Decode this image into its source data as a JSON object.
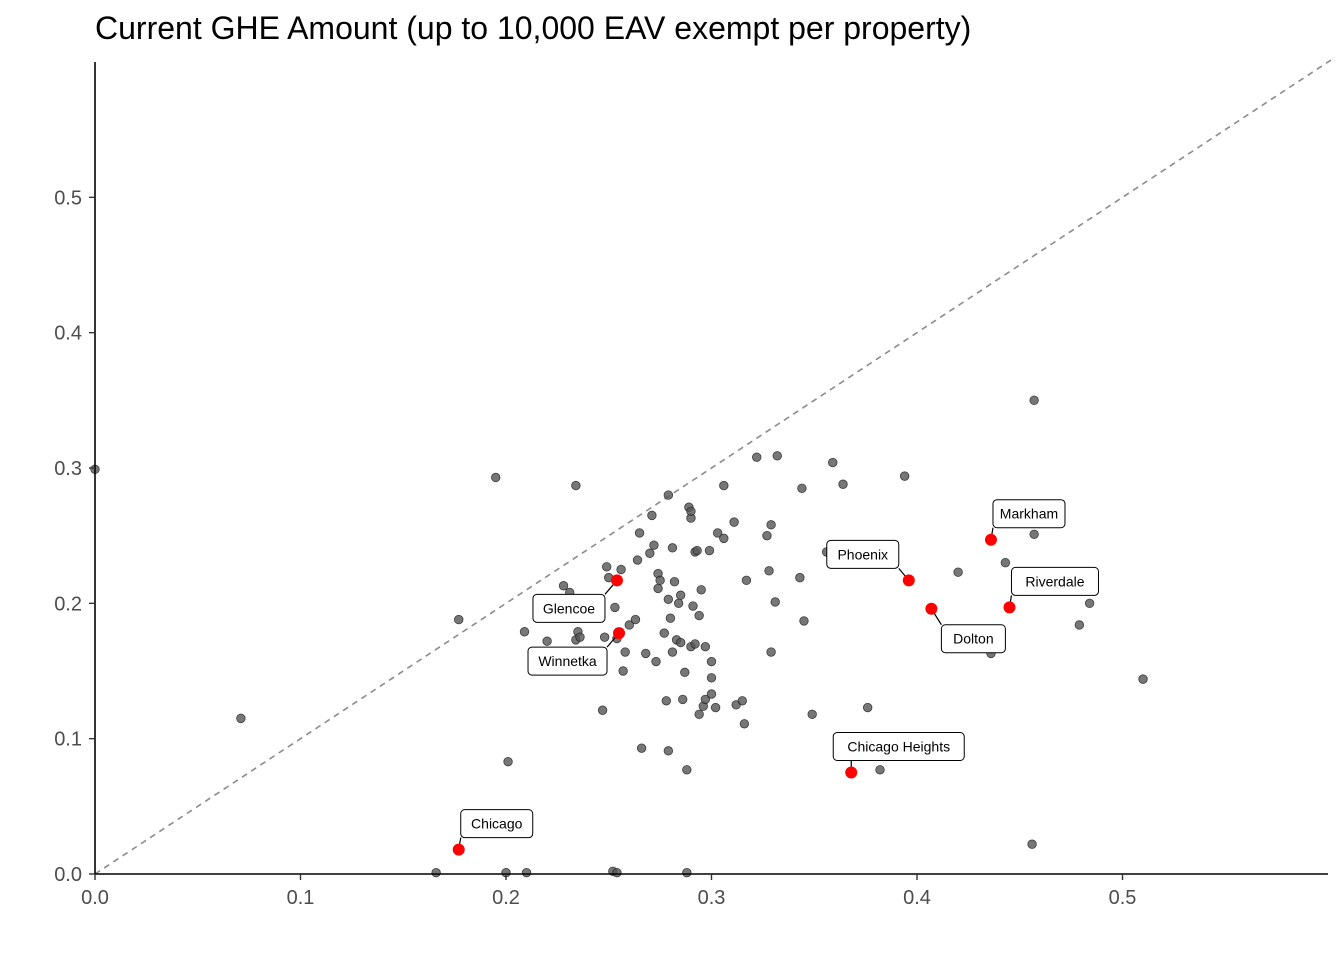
{
  "chart_data": {
    "type": "scatter",
    "title": "Current GHE Amount (up to 10,000 EAV exempt per property)",
    "xlabel": "",
    "ylabel": "",
    "xlim": [
      0,
      0.6
    ],
    "ylim": [
      0,
      0.6
    ],
    "x_ticks": [
      0.0,
      0.1,
      0.2,
      0.3,
      0.4,
      0.5
    ],
    "x_tick_labels": [
      "0.0",
      "0.1",
      "0.2",
      "0.3",
      "0.4",
      "0.5"
    ],
    "y_ticks": [
      0.0,
      0.1,
      0.2,
      0.3,
      0.4,
      0.5
    ],
    "y_tick_labels": [
      "0.0",
      "0.1",
      "0.2",
      "0.3",
      "0.4",
      "0.5"
    ],
    "grid": false,
    "reference_line": "y = x (dashed)",
    "colors": {
      "points": "#555555",
      "highlight": "#ff0000",
      "reference_line": "#8c8c8c"
    },
    "points": [
      [
        0.0,
        0.299
      ],
      [
        0.071,
        0.115
      ],
      [
        0.177,
        0.188
      ],
      [
        0.195,
        0.293
      ],
      [
        0.201,
        0.083
      ],
      [
        0.209,
        0.179
      ],
      [
        0.22,
        0.172
      ],
      [
        0.228,
        0.213
      ],
      [
        0.231,
        0.208
      ],
      [
        0.234,
        0.287
      ],
      [
        0.234,
        0.173
      ],
      [
        0.235,
        0.179
      ],
      [
        0.236,
        0.175
      ],
      [
        0.247,
        0.121
      ],
      [
        0.248,
        0.175
      ],
      [
        0.249,
        0.227
      ],
      [
        0.25,
        0.219
      ],
      [
        0.253,
        0.197
      ],
      [
        0.254,
        0.174
      ],
      [
        0.256,
        0.225
      ],
      [
        0.257,
        0.15
      ],
      [
        0.258,
        0.164
      ],
      [
        0.26,
        0.184
      ],
      [
        0.263,
        0.188
      ],
      [
        0.264,
        0.232
      ],
      [
        0.265,
        0.252
      ],
      [
        0.266,
        0.093
      ],
      [
        0.268,
        0.163
      ],
      [
        0.27,
        0.237
      ],
      [
        0.271,
        0.265
      ],
      [
        0.272,
        0.243
      ],
      [
        0.273,
        0.157
      ],
      [
        0.274,
        0.222
      ],
      [
        0.274,
        0.211
      ],
      [
        0.275,
        0.217
      ],
      [
        0.277,
        0.178
      ],
      [
        0.278,
        0.128
      ],
      [
        0.279,
        0.28
      ],
      [
        0.279,
        0.091
      ],
      [
        0.279,
        0.203
      ],
      [
        0.28,
        0.189
      ],
      [
        0.281,
        0.241
      ],
      [
        0.281,
        0.164
      ],
      [
        0.282,
        0.216
      ],
      [
        0.283,
        0.173
      ],
      [
        0.284,
        0.2
      ],
      [
        0.285,
        0.171
      ],
      [
        0.285,
        0.206
      ],
      [
        0.286,
        0.129
      ],
      [
        0.287,
        0.149
      ],
      [
        0.288,
        0.077
      ],
      [
        0.289,
        0.271
      ],
      [
        0.29,
        0.263
      ],
      [
        0.29,
        0.268
      ],
      [
        0.29,
        0.168
      ],
      [
        0.291,
        0.198
      ],
      [
        0.292,
        0.17
      ],
      [
        0.292,
        0.238
      ],
      [
        0.293,
        0.239
      ],
      [
        0.294,
        0.191
      ],
      [
        0.294,
        0.118
      ],
      [
        0.295,
        0.21
      ],
      [
        0.296,
        0.124
      ],
      [
        0.297,
        0.129
      ],
      [
        0.297,
        0.168
      ],
      [
        0.299,
        0.239
      ],
      [
        0.3,
        0.157
      ],
      [
        0.3,
        0.145
      ],
      [
        0.3,
        0.133
      ],
      [
        0.302,
        0.123
      ],
      [
        0.303,
        0.252
      ],
      [
        0.306,
        0.287
      ],
      [
        0.306,
        0.248
      ],
      [
        0.311,
        0.26
      ],
      [
        0.312,
        0.125
      ],
      [
        0.315,
        0.128
      ],
      [
        0.316,
        0.111
      ],
      [
        0.317,
        0.217
      ],
      [
        0.322,
        0.308
      ],
      [
        0.327,
        0.25
      ],
      [
        0.328,
        0.224
      ],
      [
        0.329,
        0.258
      ],
      [
        0.329,
        0.164
      ],
      [
        0.331,
        0.201
      ],
      [
        0.332,
        0.309
      ],
      [
        0.343,
        0.219
      ],
      [
        0.344,
        0.285
      ],
      [
        0.345,
        0.187
      ],
      [
        0.349,
        0.118
      ],
      [
        0.356,
        0.238
      ],
      [
        0.359,
        0.304
      ],
      [
        0.364,
        0.288
      ],
      [
        0.376,
        0.123
      ],
      [
        0.382,
        0.077
      ],
      [
        0.394,
        0.294
      ],
      [
        0.42,
        0.223
      ],
      [
        0.436,
        0.163
      ],
      [
        0.443,
        0.23
      ],
      [
        0.457,
        0.35
      ],
      [
        0.457,
        0.251
      ],
      [
        0.456,
        0.022
      ],
      [
        0.479,
        0.184
      ],
      [
        0.484,
        0.2
      ],
      [
        0.51,
        0.144
      ],
      [
        0.166,
        0.001
      ],
      [
        0.2,
        0.001
      ],
      [
        0.21,
        0.001
      ],
      [
        0.252,
        0.002
      ],
      [
        0.254,
        0.001
      ],
      [
        0.288,
        0.001
      ]
    ],
    "highlighted": [
      {
        "name": "Chicago",
        "x": 0.177,
        "y": 0.018,
        "label_side": "above-right"
      },
      {
        "name": "Glencoe",
        "x": 0.254,
        "y": 0.217,
        "label_side": "below-left"
      },
      {
        "name": "Winnetka",
        "x": 0.255,
        "y": 0.178,
        "label_side": "below-left"
      },
      {
        "name": "Phoenix",
        "x": 0.396,
        "y": 0.217,
        "label_side": "above-left"
      },
      {
        "name": "Dolton",
        "x": 0.407,
        "y": 0.196,
        "label_side": "below-right"
      },
      {
        "name": "Markham",
        "x": 0.436,
        "y": 0.247,
        "label_side": "above-right"
      },
      {
        "name": "Riverdale",
        "x": 0.445,
        "y": 0.197,
        "label_side": "above-right"
      },
      {
        "name": "Chicago Heights",
        "x": 0.368,
        "y": 0.075,
        "label_side": "above"
      }
    ]
  }
}
